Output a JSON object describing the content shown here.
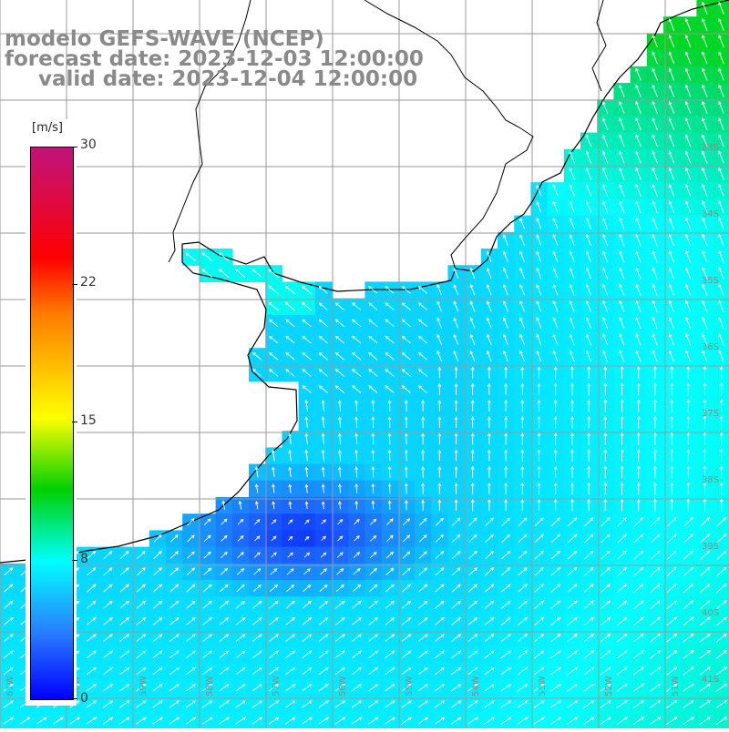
{
  "title": {
    "line1": "modelo GEFS-WAVE (NCEP)",
    "line2": "forecast date: 2023-12-03 12:00:00",
    "line3": "valid date: 2023-12-04 12:00:00"
  },
  "colorbar": {
    "unit": "[m/s]",
    "labels": [
      "30",
      "22",
      "15",
      "8",
      "0"
    ],
    "min": 0,
    "max": 30,
    "colors": [
      "#0000ff",
      "#2a7cff",
      "#00ffff",
      "#00d000",
      "#ffff00",
      "#ff7a00",
      "#ff0000",
      "#c0137c"
    ]
  },
  "map": {
    "variable": "wind speed and direction",
    "lat_labels": [
      "33S",
      "34S",
      "35S",
      "36S",
      "37S",
      "38S",
      "39S",
      "40S",
      "41S"
    ],
    "lon_labels": [
      "61W",
      "60W",
      "59W",
      "58W",
      "57W",
      "56W",
      "55W",
      "54W",
      "53W",
      "52W",
      "51W"
    ],
    "land_color": "#ffffff",
    "grid_color": "#9a9a9a"
  }
}
